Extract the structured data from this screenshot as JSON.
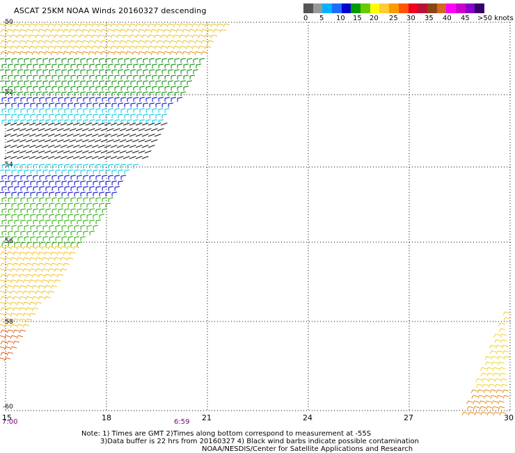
{
  "title": "ASCAT 25KM NOAA Winds 20160327 descending",
  "legend": {
    "swatches": [
      "#555555",
      "#999999",
      "#00b4ff",
      "#1e6cff",
      "#0000d0",
      "#009a00",
      "#66cc00",
      "#ffff00",
      "#ffcc33",
      "#ff9900",
      "#ff5500",
      "#ee0022",
      "#bb1133",
      "#8b4513",
      "#d2691e",
      "#ff00ff",
      "#cc00cc",
      "#8800cc",
      "#330066"
    ],
    "labels": [
      "0",
      "5",
      "10",
      "15",
      "20",
      "25",
      "30",
      "35",
      "40",
      "45",
      ">50 knots"
    ]
  },
  "axes": {
    "lat_labels": [
      "-50",
      "-52",
      "-54",
      "-56",
      "-58",
      "-60"
    ],
    "lon_labels": [
      "15",
      "18",
      "21",
      "24",
      "27",
      "30"
    ]
  },
  "times": {
    "left": "7:00",
    "mid": "6:59"
  },
  "note": {
    "line1": "Note: 1) Times are GMT 2)Times along bottom correspond to measurement at -55S",
    "line2": "3)Data buffer is 22 hrs from 20160327 4) Black wind barbs indicate possible contamination",
    "line3": "NOAA/NESDIS/Center for Satellite Applications and Research"
  },
  "barb_bands": [
    {
      "name": "yellow-top",
      "color": "#e8c020"
    },
    {
      "name": "orange-top",
      "color": "#e08a10"
    },
    {
      "name": "green-1",
      "color": "#008800"
    },
    {
      "name": "blue-1",
      "color": "#0000cc"
    },
    {
      "name": "cyan-1",
      "color": "#00c8e0"
    },
    {
      "name": "black-contam",
      "color": "#111111"
    },
    {
      "name": "cyan-2",
      "color": "#00c8e0"
    },
    {
      "name": "blue-2",
      "color": "#0000cc"
    },
    {
      "name": "green-2",
      "color": "#22aa00"
    },
    {
      "name": "yellow-bottom",
      "color": "#f0c020"
    },
    {
      "name": "orange-bottom",
      "color": "#e06010"
    },
    {
      "name": "yellow-right",
      "color": "#f2d020"
    }
  ]
}
